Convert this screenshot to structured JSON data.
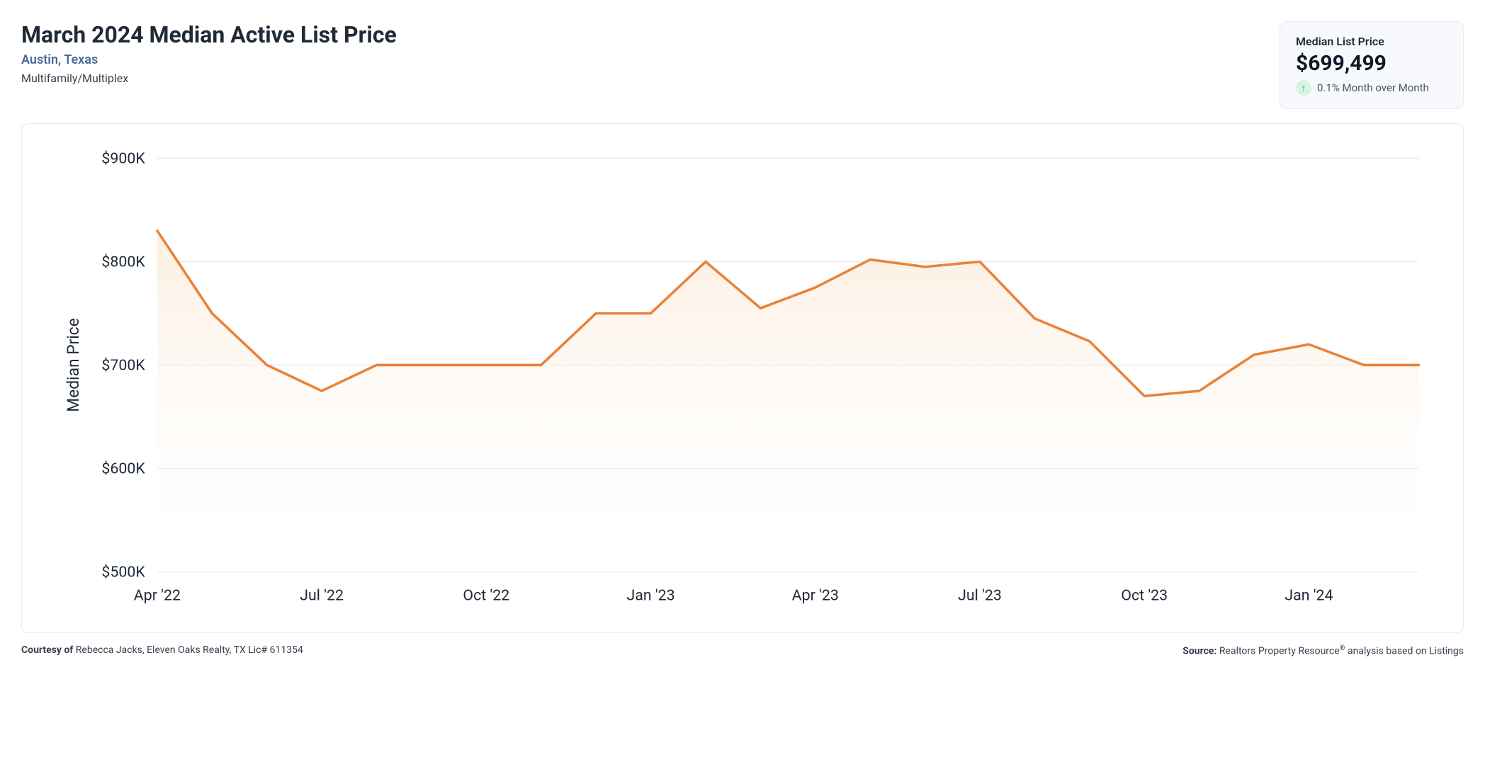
{
  "header": {
    "title": "March 2024 Median Active List Price",
    "location": "Austin, Texas",
    "property_type": "Multifamily/Multiplex"
  },
  "stat_card": {
    "label": "Median List Price",
    "value": "$699,499",
    "change_text": "0.1% Month over Month",
    "change_direction": "up",
    "arrow_bg": "#d9f3e3",
    "arrow_color": "#2f9e63"
  },
  "chart": {
    "type": "area",
    "y_axis_title": "Median Price",
    "y_min": 500,
    "y_max": 900,
    "y_ticks": [
      500,
      600,
      700,
      800,
      900
    ],
    "y_tick_labels": [
      "$500K",
      "$600K",
      "$700K",
      "$800K",
      "$900K"
    ],
    "x_labels": [
      {
        "index": 0,
        "label": "Apr '22"
      },
      {
        "index": 3,
        "label": "Jul '22"
      },
      {
        "index": 6,
        "label": "Oct '22"
      },
      {
        "index": 9,
        "label": "Jan '23"
      },
      {
        "index": 12,
        "label": "Apr '23"
      },
      {
        "index": 15,
        "label": "Jul '23"
      },
      {
        "index": 18,
        "label": "Oct '23"
      },
      {
        "index": 21,
        "label": "Jan '24"
      }
    ],
    "data_points": [
      830,
      750,
      700,
      675,
      700,
      700,
      700,
      700,
      750,
      750,
      800,
      755,
      775,
      802,
      795,
      800,
      745,
      723,
      670,
      675,
      710,
      720,
      700,
      700
    ],
    "line_color": "#e8833a",
    "line_width": 2.5,
    "fill_top_color": "#fce8d5",
    "fill_top_opacity": 0.75,
    "fill_bottom_color": "#ffffff",
    "fill_bottom_opacity": 0,
    "grid_color": "#e8eaed",
    "background": "#ffffff",
    "tick_fontsize": 15,
    "axis_title_fontsize": 16
  },
  "footer": {
    "courtesy_label": "Courtesy of",
    "courtesy_text": " Rebecca Jacks, Eleven Oaks Realty, TX Lic# 611354",
    "source_label": "Source:",
    "source_text_1": " Realtors Property Resource",
    "source_sup": "®",
    "source_text_2": " analysis based on Listings"
  }
}
